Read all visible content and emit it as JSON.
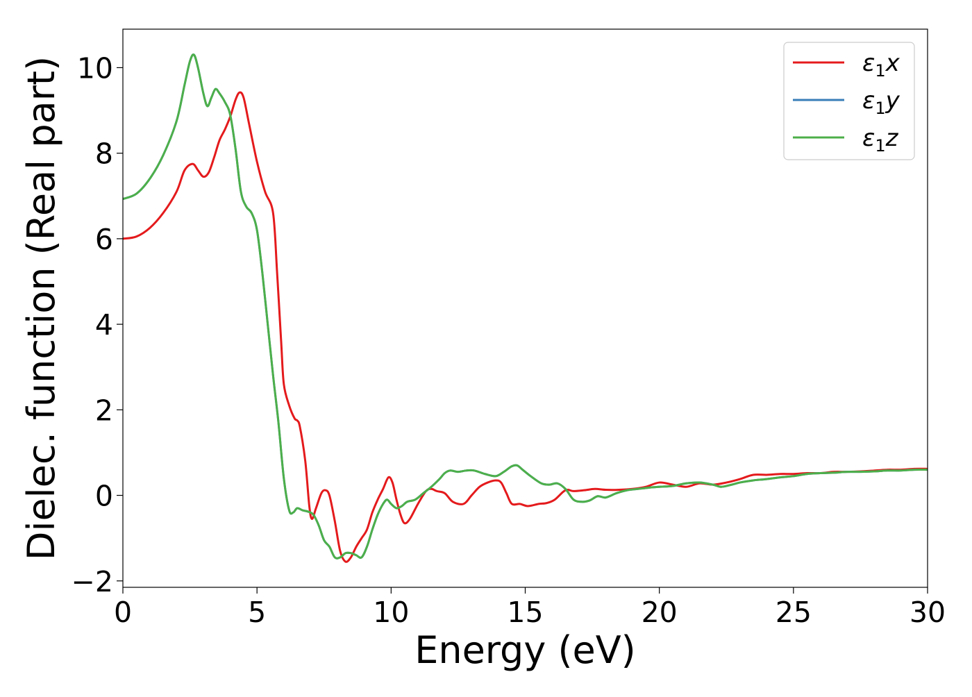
{
  "chart_data": {
    "type": "line",
    "title": "",
    "xlabel": "Energy (eV)",
    "ylabel": "Dielec. function (Real part)",
    "xlim": [
      0,
      30
    ],
    "ylim": [
      -2.15,
      10.9
    ],
    "xticks": [
      0,
      5,
      10,
      15,
      20,
      25,
      30
    ],
    "xtick_labels": [
      "0",
      "5",
      "10",
      "15",
      "20",
      "25",
      "30"
    ],
    "yticks": [
      -2,
      0,
      2,
      4,
      6,
      8,
      10
    ],
    "ytick_labels": [
      "−2",
      "0",
      "2",
      "4",
      "6",
      "8",
      "10"
    ],
    "grid": false,
    "legend_position": "top-right",
    "colors": {
      "x": "#e41a1c",
      "y": "#377eb8",
      "z": "#4daf4a",
      "axes": "#000000",
      "legend_border": "#cccccc"
    },
    "series": [
      {
        "key": "x",
        "name": "ε",
        "subscript": "1",
        "suffix": "x",
        "color": "#e41a1c",
        "points": [
          [
            0,
            6.0
          ],
          [
            0.5,
            6.05
          ],
          [
            1.0,
            6.25
          ],
          [
            1.5,
            6.6
          ],
          [
            2.0,
            7.1
          ],
          [
            2.3,
            7.6
          ],
          [
            2.6,
            7.75
          ],
          [
            2.8,
            7.6
          ],
          [
            3.0,
            7.45
          ],
          [
            3.2,
            7.55
          ],
          [
            3.4,
            7.9
          ],
          [
            3.6,
            8.3
          ],
          [
            3.8,
            8.55
          ],
          [
            4.0,
            8.85
          ],
          [
            4.2,
            9.25
          ],
          [
            4.35,
            9.42
          ],
          [
            4.5,
            9.3
          ],
          [
            4.7,
            8.7
          ],
          [
            5.0,
            7.8
          ],
          [
            5.3,
            7.1
          ],
          [
            5.6,
            6.6
          ],
          [
            5.75,
            5.2
          ],
          [
            5.9,
            3.6
          ],
          [
            6.0,
            2.6
          ],
          [
            6.2,
            2.1
          ],
          [
            6.4,
            1.8
          ],
          [
            6.5,
            1.75
          ],
          [
            6.6,
            1.6
          ],
          [
            6.8,
            0.8
          ],
          [
            6.95,
            -0.25
          ],
          [
            7.05,
            -0.55
          ],
          [
            7.2,
            -0.3
          ],
          [
            7.4,
            0.05
          ],
          [
            7.55,
            0.12
          ],
          [
            7.7,
            0.0
          ],
          [
            7.9,
            -0.6
          ],
          [
            8.1,
            -1.3
          ],
          [
            8.3,
            -1.55
          ],
          [
            8.5,
            -1.45
          ],
          [
            8.7,
            -1.2
          ],
          [
            8.9,
            -1.0
          ],
          [
            9.1,
            -0.8
          ],
          [
            9.3,
            -0.4
          ],
          [
            9.5,
            -0.1
          ],
          [
            9.7,
            0.15
          ],
          [
            9.9,
            0.42
          ],
          [
            10.05,
            0.3
          ],
          [
            10.2,
            -0.1
          ],
          [
            10.35,
            -0.45
          ],
          [
            10.5,
            -0.65
          ],
          [
            10.7,
            -0.55
          ],
          [
            11.0,
            -0.2
          ],
          [
            11.3,
            0.1
          ],
          [
            11.5,
            0.15
          ],
          [
            11.7,
            0.1
          ],
          [
            12.0,
            0.05
          ],
          [
            12.3,
            -0.15
          ],
          [
            12.7,
            -0.2
          ],
          [
            13.0,
            0.0
          ],
          [
            13.3,
            0.2
          ],
          [
            13.6,
            0.3
          ],
          [
            13.9,
            0.35
          ],
          [
            14.1,
            0.3
          ],
          [
            14.3,
            0.05
          ],
          [
            14.5,
            -0.2
          ],
          [
            14.8,
            -0.2
          ],
          [
            15.1,
            -0.25
          ],
          [
            15.5,
            -0.2
          ],
          [
            15.8,
            -0.18
          ],
          [
            16.1,
            -0.1
          ],
          [
            16.5,
            0.12
          ],
          [
            16.8,
            0.1
          ],
          [
            17.2,
            0.12
          ],
          [
            17.6,
            0.15
          ],
          [
            18.0,
            0.13
          ],
          [
            18.5,
            0.13
          ],
          [
            19.0,
            0.15
          ],
          [
            19.5,
            0.2
          ],
          [
            20.0,
            0.3
          ],
          [
            20.5,
            0.25
          ],
          [
            21.0,
            0.2
          ],
          [
            21.5,
            0.28
          ],
          [
            22.0,
            0.25
          ],
          [
            22.5,
            0.3
          ],
          [
            23.0,
            0.38
          ],
          [
            23.5,
            0.48
          ],
          [
            24.0,
            0.48
          ],
          [
            24.5,
            0.5
          ],
          [
            25.0,
            0.5
          ],
          [
            25.5,
            0.52
          ],
          [
            26.0,
            0.52
          ],
          [
            26.5,
            0.55
          ],
          [
            27.0,
            0.55
          ],
          [
            27.5,
            0.56
          ],
          [
            28.0,
            0.58
          ],
          [
            28.5,
            0.6
          ],
          [
            29.0,
            0.6
          ],
          [
            29.5,
            0.62
          ],
          [
            30.0,
            0.62
          ]
        ]
      },
      {
        "key": "y",
        "name": "ε",
        "subscript": "1",
        "suffix": "y",
        "color": "#377eb8",
        "points": [
          [
            0,
            6.93
          ],
          [
            0.5,
            7.05
          ],
          [
            1.0,
            7.4
          ],
          [
            1.5,
            7.95
          ],
          [
            2.0,
            8.75
          ],
          [
            2.3,
            9.6
          ],
          [
            2.5,
            10.15
          ],
          [
            2.65,
            10.3
          ],
          [
            2.8,
            10.0
          ],
          [
            3.0,
            9.4
          ],
          [
            3.15,
            9.1
          ],
          [
            3.3,
            9.3
          ],
          [
            3.45,
            9.5
          ],
          [
            3.6,
            9.4
          ],
          [
            3.8,
            9.2
          ],
          [
            4.0,
            8.9
          ],
          [
            4.2,
            8.1
          ],
          [
            4.4,
            7.1
          ],
          [
            4.6,
            6.75
          ],
          [
            4.8,
            6.6
          ],
          [
            5.0,
            6.2
          ],
          [
            5.2,
            5.2
          ],
          [
            5.4,
            4.0
          ],
          [
            5.6,
            2.8
          ],
          [
            5.8,
            1.7
          ],
          [
            6.0,
            0.4
          ],
          [
            6.2,
            -0.35
          ],
          [
            6.35,
            -0.4
          ],
          [
            6.5,
            -0.3
          ],
          [
            6.7,
            -0.35
          ],
          [
            6.9,
            -0.38
          ],
          [
            7.1,
            -0.45
          ],
          [
            7.3,
            -0.7
          ],
          [
            7.5,
            -1.05
          ],
          [
            7.7,
            -1.2
          ],
          [
            7.9,
            -1.45
          ],
          [
            8.1,
            -1.45
          ],
          [
            8.3,
            -1.35
          ],
          [
            8.5,
            -1.35
          ],
          [
            8.7,
            -1.4
          ],
          [
            8.9,
            -1.45
          ],
          [
            9.1,
            -1.2
          ],
          [
            9.3,
            -0.8
          ],
          [
            9.5,
            -0.45
          ],
          [
            9.7,
            -0.2
          ],
          [
            9.85,
            -0.1
          ],
          [
            10.0,
            -0.2
          ],
          [
            10.2,
            -0.3
          ],
          [
            10.4,
            -0.25
          ],
          [
            10.6,
            -0.15
          ],
          [
            10.9,
            -0.1
          ],
          [
            11.2,
            0.05
          ],
          [
            11.5,
            0.2
          ],
          [
            11.8,
            0.38
          ],
          [
            12.0,
            0.52
          ],
          [
            12.2,
            0.58
          ],
          [
            12.5,
            0.55
          ],
          [
            12.8,
            0.58
          ],
          [
            13.1,
            0.58
          ],
          [
            13.5,
            0.5
          ],
          [
            13.9,
            0.45
          ],
          [
            14.2,
            0.55
          ],
          [
            14.5,
            0.68
          ],
          [
            14.7,
            0.7
          ],
          [
            14.9,
            0.6
          ],
          [
            15.2,
            0.45
          ],
          [
            15.6,
            0.28
          ],
          [
            15.9,
            0.25
          ],
          [
            16.2,
            0.28
          ],
          [
            16.5,
            0.15
          ],
          [
            16.8,
            -0.1
          ],
          [
            17.1,
            -0.15
          ],
          [
            17.4,
            -0.12
          ],
          [
            17.7,
            -0.02
          ],
          [
            18.0,
            -0.05
          ],
          [
            18.4,
            0.05
          ],
          [
            18.8,
            0.12
          ],
          [
            19.2,
            0.15
          ],
          [
            19.6,
            0.18
          ],
          [
            20.0,
            0.2
          ],
          [
            20.5,
            0.22
          ],
          [
            21.0,
            0.28
          ],
          [
            21.5,
            0.3
          ],
          [
            22.0,
            0.25
          ],
          [
            22.3,
            0.2
          ],
          [
            22.7,
            0.25
          ],
          [
            23.0,
            0.3
          ],
          [
            23.5,
            0.35
          ],
          [
            24.0,
            0.38
          ],
          [
            24.5,
            0.42
          ],
          [
            25.0,
            0.45
          ],
          [
            25.5,
            0.5
          ],
          [
            26.0,
            0.52
          ],
          [
            26.5,
            0.53
          ],
          [
            27.0,
            0.55
          ],
          [
            27.5,
            0.55
          ],
          [
            28.0,
            0.56
          ],
          [
            28.5,
            0.58
          ],
          [
            29.0,
            0.58
          ],
          [
            29.5,
            0.6
          ],
          [
            30.0,
            0.6
          ]
        ]
      },
      {
        "key": "z",
        "name": "ε",
        "subscript": "1",
        "suffix": "z",
        "color": "#4daf4a",
        "points": [
          [
            0,
            6.93
          ],
          [
            0.5,
            7.05
          ],
          [
            1.0,
            7.4
          ],
          [
            1.5,
            7.95
          ],
          [
            2.0,
            8.75
          ],
          [
            2.3,
            9.6
          ],
          [
            2.5,
            10.15
          ],
          [
            2.65,
            10.3
          ],
          [
            2.8,
            10.0
          ],
          [
            3.0,
            9.4
          ],
          [
            3.15,
            9.1
          ],
          [
            3.3,
            9.3
          ],
          [
            3.45,
            9.5
          ],
          [
            3.6,
            9.4
          ],
          [
            3.8,
            9.2
          ],
          [
            4.0,
            8.9
          ],
          [
            4.2,
            8.1
          ],
          [
            4.4,
            7.1
          ],
          [
            4.6,
            6.75
          ],
          [
            4.8,
            6.6
          ],
          [
            5.0,
            6.2
          ],
          [
            5.2,
            5.2
          ],
          [
            5.4,
            4.0
          ],
          [
            5.6,
            2.8
          ],
          [
            5.8,
            1.7
          ],
          [
            6.0,
            0.4
          ],
          [
            6.2,
            -0.35
          ],
          [
            6.35,
            -0.4
          ],
          [
            6.5,
            -0.3
          ],
          [
            6.7,
            -0.35
          ],
          [
            6.9,
            -0.38
          ],
          [
            7.1,
            -0.45
          ],
          [
            7.3,
            -0.7
          ],
          [
            7.5,
            -1.05
          ],
          [
            7.7,
            -1.2
          ],
          [
            7.9,
            -1.45
          ],
          [
            8.1,
            -1.45
          ],
          [
            8.3,
            -1.35
          ],
          [
            8.5,
            -1.35
          ],
          [
            8.7,
            -1.4
          ],
          [
            8.9,
            -1.45
          ],
          [
            9.1,
            -1.2
          ],
          [
            9.3,
            -0.8
          ],
          [
            9.5,
            -0.45
          ],
          [
            9.7,
            -0.2
          ],
          [
            9.85,
            -0.1
          ],
          [
            10.0,
            -0.2
          ],
          [
            10.2,
            -0.3
          ],
          [
            10.4,
            -0.25
          ],
          [
            10.6,
            -0.15
          ],
          [
            10.9,
            -0.1
          ],
          [
            11.2,
            0.05
          ],
          [
            11.5,
            0.2
          ],
          [
            11.8,
            0.38
          ],
          [
            12.0,
            0.52
          ],
          [
            12.2,
            0.58
          ],
          [
            12.5,
            0.55
          ],
          [
            12.8,
            0.58
          ],
          [
            13.1,
            0.58
          ],
          [
            13.5,
            0.5
          ],
          [
            13.9,
            0.45
          ],
          [
            14.2,
            0.55
          ],
          [
            14.5,
            0.68
          ],
          [
            14.7,
            0.7
          ],
          [
            14.9,
            0.6
          ],
          [
            15.2,
            0.45
          ],
          [
            15.6,
            0.28
          ],
          [
            15.9,
            0.25
          ],
          [
            16.2,
            0.28
          ],
          [
            16.5,
            0.15
          ],
          [
            16.8,
            -0.1
          ],
          [
            17.1,
            -0.15
          ],
          [
            17.4,
            -0.12
          ],
          [
            17.7,
            -0.02
          ],
          [
            18.0,
            -0.05
          ],
          [
            18.4,
            0.05
          ],
          [
            18.8,
            0.12
          ],
          [
            19.2,
            0.15
          ],
          [
            19.6,
            0.18
          ],
          [
            20.0,
            0.2
          ],
          [
            20.5,
            0.22
          ],
          [
            21.0,
            0.28
          ],
          [
            21.5,
            0.3
          ],
          [
            22.0,
            0.25
          ],
          [
            22.3,
            0.2
          ],
          [
            22.7,
            0.25
          ],
          [
            23.0,
            0.3
          ],
          [
            23.5,
            0.35
          ],
          [
            24.0,
            0.38
          ],
          [
            24.5,
            0.42
          ],
          [
            25.0,
            0.45
          ],
          [
            25.5,
            0.5
          ],
          [
            26.0,
            0.52
          ],
          [
            26.5,
            0.53
          ],
          [
            27.0,
            0.55
          ],
          [
            27.5,
            0.55
          ],
          [
            28.0,
            0.56
          ],
          [
            28.5,
            0.58
          ],
          [
            29.0,
            0.58
          ],
          [
            29.5,
            0.6
          ],
          [
            30.0,
            0.6
          ]
        ]
      }
    ]
  }
}
